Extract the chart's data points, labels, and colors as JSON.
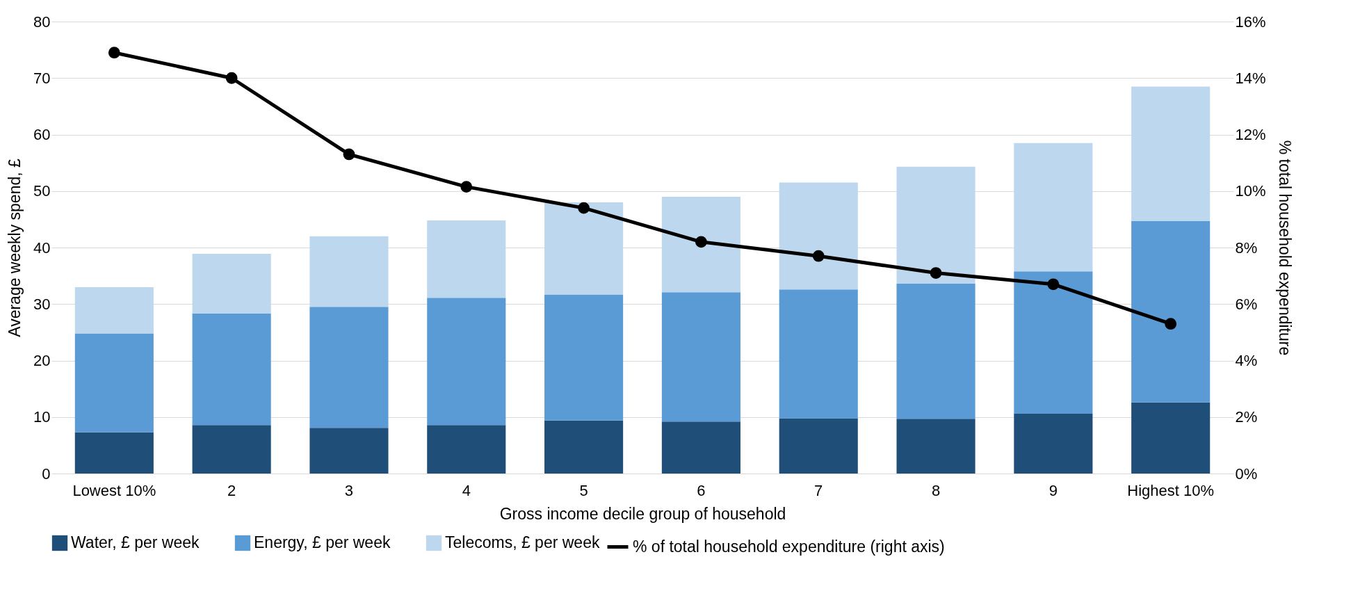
{
  "chart_data": {
    "type": "bar",
    "stacked": true,
    "xlabel": "Gross income decile group of household",
    "ylabel": "Average weekly spend, £",
    "y2label": "% total  household expenditure",
    "categories": [
      "Lowest 10%",
      "2",
      "3",
      "4",
      "5",
      "6",
      "7",
      "8",
      "9",
      "Highest 10%"
    ],
    "series": [
      {
        "name": "Water, £ per week",
        "color": "#1f4e79",
        "values": [
          7.3,
          8.6,
          8.1,
          8.6,
          9.4,
          9.2,
          9.8,
          9.7,
          10.6,
          12.6
        ]
      },
      {
        "name": "Energy, £ per week",
        "color": "#5b9bd5",
        "values": [
          17.5,
          19.7,
          21.4,
          22.5,
          22.3,
          22.9,
          22.8,
          23.9,
          25.2,
          32.1
        ]
      },
      {
        "name": "Telecoms, £ per week",
        "color": "#bdd7ee",
        "values": [
          8.2,
          10.6,
          12.5,
          13.7,
          16.3,
          16.9,
          18.9,
          20.7,
          22.7,
          23.8
        ]
      },
      {
        "name": "% of total household expenditure (right axis)",
        "type": "line",
        "axis": "y2",
        "color": "#000000",
        "marker": "circle",
        "values": [
          14.9,
          14.0,
          11.3,
          10.15,
          9.4,
          8.2,
          7.7,
          7.1,
          6.7,
          5.3
        ]
      }
    ],
    "ylim": [
      0,
      80
    ],
    "yticks": [
      0,
      10,
      20,
      30,
      40,
      50,
      60,
      70,
      80
    ],
    "y2lim": [
      0,
      16
    ],
    "y2ticks": [
      {
        "value": 0,
        "label": "0%"
      },
      {
        "value": 2,
        "label": "2%"
      },
      {
        "value": 4,
        "label": "4%"
      },
      {
        "value": 6,
        "label": "6%"
      },
      {
        "value": 8,
        "label": "8%"
      },
      {
        "value": 10,
        "label": "10%"
      },
      {
        "value": 12,
        "label": "12%"
      },
      {
        "value": 14,
        "label": "14%"
      },
      {
        "value": 16,
        "label": "16%"
      }
    ],
    "grid": "y",
    "legend": "bottom"
  }
}
